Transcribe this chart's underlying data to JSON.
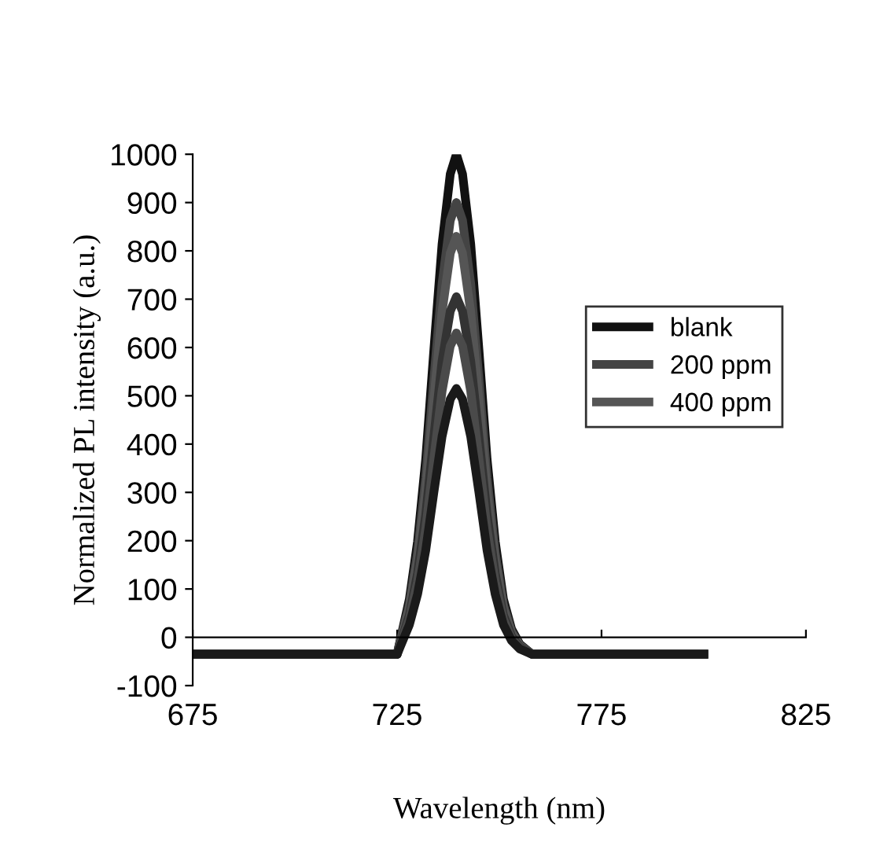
{
  "chart_data": {
    "type": "line",
    "xlabel": "Wavelength (nm)",
    "ylabel": "Normalized PL intensity (a.u.)",
    "x": [
      675,
      725,
      728,
      730,
      732,
      734,
      736,
      738,
      739.5,
      741,
      743,
      745,
      747,
      749,
      751,
      753,
      755,
      758,
      800
    ],
    "series": [
      {
        "name": "blank",
        "color": "#111111",
        "values": [
          -35,
          -35,
          79,
          198,
          369,
          596,
          814,
          959,
          1000,
          959,
          814,
          596,
          369,
          198,
          79,
          17,
          -14,
          -35,
          -35
        ]
      },
      {
        "name": "200 ppm",
        "color": "#444444",
        "values": [
          -35,
          -35,
          68,
          175,
          330,
          535,
          732,
          863,
          900,
          863,
          732,
          535,
          330,
          175,
          68,
          12,
          -16,
          -35,
          -35
        ]
      },
      {
        "name": "400 ppm",
        "color": "#555555",
        "values": [
          -35,
          -35,
          60,
          160,
          302,
          493,
          674,
          795,
          830,
          795,
          674,
          493,
          302,
          160,
          60,
          8,
          -18,
          -35,
          -35
        ]
      },
      {
        "color": "#333333",
        "values": [
          -35,
          -35,
          46,
          132,
          254,
          416,
          572,
          675,
          705,
          675,
          572,
          416,
          254,
          132,
          46,
          2,
          -20,
          -35,
          -35
        ]
      },
      {
        "color": "#4a4a4a",
        "values": [
          -35,
          -35,
          38,
          115,
          224,
          371,
          510,
          603,
          630,
          603,
          510,
          371,
          224,
          115,
          38,
          -2,
          -22,
          -35,
          -35
        ]
      },
      {
        "color": "#1a1a1a",
        "values": [
          -35,
          -35,
          26,
          89,
          180,
          301,
          416,
          493,
          515,
          493,
          416,
          301,
          180,
          89,
          26,
          -7,
          -24,
          -35,
          -35
        ]
      }
    ],
    "xlim": [
      675,
      825
    ],
    "xticks": [
      675,
      725,
      775,
      825
    ],
    "ylim": [
      -100,
      1000
    ],
    "yticks": [
      -100,
      0,
      100,
      200,
      300,
      400,
      500,
      600,
      700,
      800,
      900,
      1000
    ],
    "grid": false,
    "legend": "right",
    "marker": "none",
    "line_style": "solid"
  }
}
